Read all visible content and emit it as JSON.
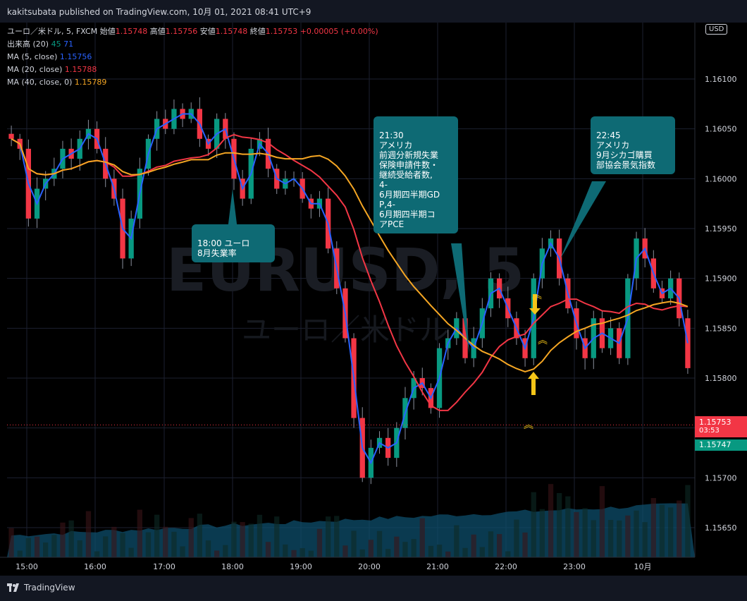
{
  "header": {
    "published": "kakitsubata published on TradingView.com, 10月 01, 2021 08:41 UTC+9"
  },
  "legend": {
    "symbol": "ユーロ／米ドル, 5, FXCM",
    "open_label": "始値",
    "open": "1.15748",
    "high_label": "高値",
    "high": "1.15756",
    "low_label": "安値",
    "low": "1.15748",
    "close_label": "終値",
    "close": "1.15753",
    "change": "+0.00005 (+0.00%)",
    "volume_label": "出来高 (20)",
    "volume_a": "45",
    "volume_b": "71",
    "ma5_label": "MA (5, close)",
    "ma5_value": "1.15756",
    "ma20_label": "MA (20, close)",
    "ma20_value": "1.15788",
    "ma40_label": "MA (40, close, 0)",
    "ma40_value": "1.15789"
  },
  "watermark": {
    "symbol": "EURUSD, 5",
    "name": "ユーロ／米ドル"
  },
  "axis": {
    "currency": "USD",
    "last_price": "1.15753",
    "countdown": "03:53",
    "bid_price": "1.15747"
  },
  "annotations": [
    {
      "text": "18:00 ユーロ\n8月失業率"
    },
    {
      "text": "21:30\nアメリカ\n前週分新規失業\n保険申請件数・\n継続受給者数,\n4-\n6月期四半期GD\nP,4-\n6月期四半期コ\nアPCE"
    },
    {
      "text": "22:45\nアメリカ\n9月シカゴ購買\n部協会景気指数"
    }
  ],
  "footer": {
    "brand": "TradingView"
  },
  "colors": {
    "up": "#089981",
    "down": "#f23645",
    "ma5": "#2962ff",
    "ma20": "#f23645",
    "ma40": "#f5a623",
    "annotation": "#0e6a74",
    "volume_area": "#0d4d6b"
  },
  "chart_data": {
    "type": "candlestick",
    "interval": "5 minutes",
    "ylim": [
      1.1562,
      1.1613
    ],
    "y_ticks": [
      "1.16100",
      "1.16050",
      "1.16000",
      "1.15950",
      "1.15900",
      "1.15850",
      "1.15800",
      "1.15700",
      "1.15650"
    ],
    "x_ticks": [
      "15:00",
      "16:00",
      "17:00",
      "18:00",
      "19:00",
      "20:00",
      "21:00",
      "22:00",
      "23:00",
      "10月"
    ],
    "close_path": [
      1.1604,
      1.1603,
      1.1596,
      1.1599,
      1.16,
      1.1601,
      1.1603,
      1.1602,
      1.1604,
      1.1605,
      1.1603,
      1.16,
      1.1598,
      1.1592,
      1.1596,
      1.1601,
      1.1604,
      1.1606,
      1.1605,
      1.1607,
      1.1606,
      1.1607,
      1.1604,
      1.1603,
      1.1606,
      1.1604,
      1.16,
      1.1598,
      1.1603,
      1.1604,
      1.1601,
      1.1599,
      1.16,
      1.16,
      1.1598,
      1.1597,
      1.1598,
      1.1593,
      1.1589,
      1.1584,
      1.1576,
      1.157,
      1.1573,
      1.1574,
      1.1572,
      1.1575,
      1.1578,
      1.158,
      1.1579,
      1.1577,
      1.1583,
      1.1584,
      1.1586,
      1.1582,
      1.1584,
      1.1587,
      1.159,
      1.1588,
      1.1586,
      1.1584,
      1.1582,
      1.159,
      1.1593,
      1.1594,
      1.159,
      1.1587,
      1.1584,
      1.1582,
      1.1586,
      1.1583,
      1.1585,
      1.1582,
      1.159,
      1.1594,
      1.1592,
      1.1589,
      1.1588,
      1.159,
      1.1586,
      1.1581
    ],
    "ma5_last": 1.15756,
    "ma20_last": 1.15788,
    "ma40_last": 1.15789,
    "last": 1.15753
  }
}
